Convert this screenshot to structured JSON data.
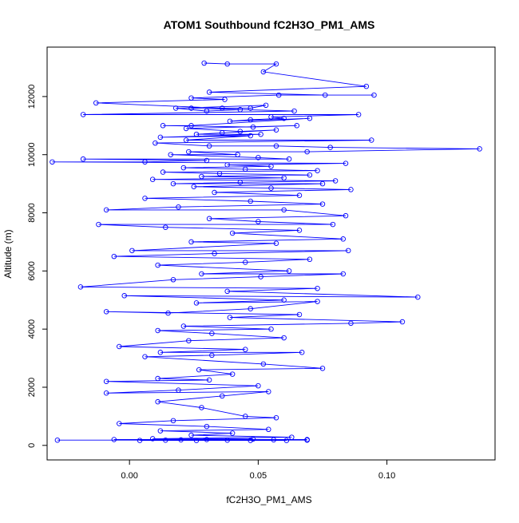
{
  "chart_data": {
    "type": "line",
    "title": "ATOM1 Southbound fC2H3O_PM1_AMS",
    "xlabel": "fC2H3O_PM1_AMS",
    "ylabel": "Altitude (m)",
    "xlim": [
      -0.032,
      0.142
    ],
    "ylim": [
      -500,
      13700
    ],
    "xticks": [
      0.0,
      0.05,
      0.1
    ],
    "xtick_labels": [
      "0.00",
      "0.05",
      "0.10"
    ],
    "yticks": [
      0,
      2000,
      4000,
      6000,
      8000,
      10000,
      12000
    ],
    "ytick_labels": [
      "0",
      "2000",
      "4000",
      "6000",
      "8000",
      "10000",
      "12000"
    ],
    "grid": false,
    "series": [
      {
        "color": "#0000ff",
        "marker": "open-circle",
        "points": [
          {
            "x": 0.029,
            "y": 13150
          },
          {
            "x": 0.038,
            "y": 13120
          },
          {
            "x": 0.057,
            "y": 13120
          },
          {
            "x": 0.052,
            "y": 12850
          },
          {
            "x": 0.092,
            "y": 12350
          },
          {
            "x": 0.031,
            "y": 12150
          },
          {
            "x": 0.076,
            "y": 12050
          },
          {
            "x": 0.095,
            "y": 12050
          },
          {
            "x": 0.058,
            "y": 12050
          },
          {
            "x": 0.024,
            "y": 11950
          },
          {
            "x": 0.037,
            "y": 11900
          },
          {
            "x": -0.013,
            "y": 11780
          },
          {
            "x": 0.036,
            "y": 11600
          },
          {
            "x": 0.047,
            "y": 11600
          },
          {
            "x": 0.053,
            "y": 11700
          },
          {
            "x": 0.018,
            "y": 11600
          },
          {
            "x": 0.03,
            "y": 11500
          },
          {
            "x": 0.043,
            "y": 11550
          },
          {
            "x": 0.024,
            "y": 11600
          },
          {
            "x": 0.064,
            "y": 11500
          },
          {
            "x": -0.018,
            "y": 11380
          },
          {
            "x": 0.089,
            "y": 11380
          },
          {
            "x": 0.055,
            "y": 11300
          },
          {
            "x": 0.06,
            "y": 11250
          },
          {
            "x": 0.047,
            "y": 11200
          },
          {
            "x": 0.039,
            "y": 11150
          },
          {
            "x": 0.07,
            "y": 11250
          },
          {
            "x": 0.024,
            "y": 11000
          },
          {
            "x": 0.013,
            "y": 11000
          },
          {
            "x": 0.048,
            "y": 10950
          },
          {
            "x": 0.065,
            "y": 11000
          },
          {
            "x": 0.022,
            "y": 10900
          },
          {
            "x": 0.043,
            "y": 10800
          },
          {
            "x": 0.057,
            "y": 10850
          },
          {
            "x": 0.036,
            "y": 10750
          },
          {
            "x": 0.026,
            "y": 10700
          },
          {
            "x": 0.051,
            "y": 10700
          },
          {
            "x": 0.012,
            "y": 10600
          },
          {
            "x": 0.047,
            "y": 10650
          },
          {
            "x": 0.022,
            "y": 10500
          },
          {
            "x": 0.094,
            "y": 10500
          },
          {
            "x": 0.01,
            "y": 10400
          },
          {
            "x": 0.031,
            "y": 10300
          },
          {
            "x": 0.057,
            "y": 10300
          },
          {
            "x": 0.078,
            "y": 10250
          },
          {
            "x": 0.136,
            "y": 10200
          },
          {
            "x": 0.069,
            "y": 10100
          },
          {
            "x": 0.023,
            "y": 10100
          },
          {
            "x": 0.042,
            "y": 10000
          },
          {
            "x": 0.016,
            "y": 10000
          },
          {
            "x": 0.05,
            "y": 9900
          },
          {
            "x": 0.062,
            "y": 9850
          },
          {
            "x": -0.018,
            "y": 9850
          },
          {
            "x": 0.03,
            "y": 9800
          },
          {
            "x": 0.006,
            "y": 9750
          },
          {
            "x": -0.03,
            "y": 9750
          },
          {
            "x": 0.084,
            "y": 9700
          },
          {
            "x": 0.038,
            "y": 9650
          },
          {
            "x": 0.055,
            "y": 9600
          },
          {
            "x": 0.021,
            "y": 9550
          },
          {
            "x": 0.045,
            "y": 9500
          },
          {
            "x": 0.073,
            "y": 9450
          },
          {
            "x": 0.013,
            "y": 9400
          },
          {
            "x": 0.035,
            "y": 9350
          },
          {
            "x": 0.07,
            "y": 9300
          },
          {
            "x": 0.028,
            "y": 9250
          },
          {
            "x": 0.06,
            "y": 9200
          },
          {
            "x": 0.009,
            "y": 9150
          },
          {
            "x": 0.08,
            "y": 9100
          },
          {
            "x": 0.043,
            "y": 9050
          },
          {
            "x": 0.017,
            "y": 9000
          },
          {
            "x": 0.075,
            "y": 9000
          },
          {
            "x": 0.025,
            "y": 8900
          },
          {
            "x": 0.055,
            "y": 8850
          },
          {
            "x": 0.086,
            "y": 8800
          },
          {
            "x": 0.033,
            "y": 8700
          },
          {
            "x": 0.066,
            "y": 8600
          },
          {
            "x": 0.006,
            "y": 8500
          },
          {
            "x": 0.047,
            "y": 8400
          },
          {
            "x": 0.075,
            "y": 8300
          },
          {
            "x": 0.019,
            "y": 8200
          },
          {
            "x": -0.009,
            "y": 8100
          },
          {
            "x": 0.06,
            "y": 8100
          },
          {
            "x": 0.084,
            "y": 7900
          },
          {
            "x": 0.031,
            "y": 7800
          },
          {
            "x": 0.05,
            "y": 7700
          },
          {
            "x": 0.079,
            "y": 7600
          },
          {
            "x": -0.012,
            "y": 7600
          },
          {
            "x": 0.014,
            "y": 7500
          },
          {
            "x": 0.066,
            "y": 7400
          },
          {
            "x": 0.04,
            "y": 7300
          },
          {
            "x": 0.083,
            "y": 7100
          },
          {
            "x": 0.024,
            "y": 7000
          },
          {
            "x": 0.057,
            "y": 6950
          },
          {
            "x": 0.001,
            "y": 6700
          },
          {
            "x": 0.085,
            "y": 6700
          },
          {
            "x": 0.033,
            "y": 6600
          },
          {
            "x": -0.006,
            "y": 6500
          },
          {
            "x": 0.07,
            "y": 6400
          },
          {
            "x": 0.045,
            "y": 6300
          },
          {
            "x": 0.011,
            "y": 6200
          },
          {
            "x": 0.062,
            "y": 6000
          },
          {
            "x": 0.028,
            "y": 5900
          },
          {
            "x": 0.083,
            "y": 5900
          },
          {
            "x": 0.051,
            "y": 5800
          },
          {
            "x": 0.017,
            "y": 5700
          },
          {
            "x": -0.019,
            "y": 5450
          },
          {
            "x": 0.073,
            "y": 5400
          },
          {
            "x": 0.038,
            "y": 5300
          },
          {
            "x": 0.112,
            "y": 5100
          },
          {
            "x": -0.002,
            "y": 5150
          },
          {
            "x": 0.06,
            "y": 5000
          },
          {
            "x": 0.026,
            "y": 4900
          },
          {
            "x": 0.073,
            "y": 4950
          },
          {
            "x": 0.047,
            "y": 4700
          },
          {
            "x": 0.015,
            "y": 4550
          },
          {
            "x": -0.009,
            "y": 4600
          },
          {
            "x": 0.066,
            "y": 4500
          },
          {
            "x": 0.039,
            "y": 4400
          },
          {
            "x": 0.106,
            "y": 4250
          },
          {
            "x": 0.086,
            "y": 4200
          },
          {
            "x": 0.021,
            "y": 4100
          },
          {
            "x": 0.055,
            "y": 4000
          },
          {
            "x": 0.011,
            "y": 3950
          },
          {
            "x": 0.032,
            "y": 3850
          },
          {
            "x": 0.06,
            "y": 3700
          },
          {
            "x": 0.023,
            "y": 3600
          },
          {
            "x": -0.004,
            "y": 3400
          },
          {
            "x": 0.045,
            "y": 3300
          },
          {
            "x": 0.012,
            "y": 3200
          },
          {
            "x": 0.067,
            "y": 3200
          },
          {
            "x": 0.032,
            "y": 3100
          },
          {
            "x": 0.006,
            "y": 3050
          },
          {
            "x": 0.052,
            "y": 2800
          },
          {
            "x": 0.075,
            "y": 2650
          },
          {
            "x": 0.027,
            "y": 2600
          },
          {
            "x": 0.04,
            "y": 2450
          },
          {
            "x": 0.011,
            "y": 2300
          },
          {
            "x": 0.031,
            "y": 2250
          },
          {
            "x": -0.009,
            "y": 2200
          },
          {
            "x": 0.05,
            "y": 2050
          },
          {
            "x": 0.019,
            "y": 1900
          },
          {
            "x": -0.009,
            "y": 1800
          },
          {
            "x": 0.054,
            "y": 1850
          },
          {
            "x": 0.036,
            "y": 1700
          },
          {
            "x": 0.011,
            "y": 1500
          },
          {
            "x": 0.028,
            "y": 1300
          },
          {
            "x": 0.045,
            "y": 1000
          },
          {
            "x": 0.057,
            "y": 950
          },
          {
            "x": 0.017,
            "y": 850
          },
          {
            "x": -0.004,
            "y": 750
          },
          {
            "x": 0.03,
            "y": 650
          },
          {
            "x": 0.054,
            "y": 550
          },
          {
            "x": 0.012,
            "y": 500
          },
          {
            "x": 0.04,
            "y": 420
          },
          {
            "x": 0.024,
            "y": 350
          },
          {
            "x": 0.063,
            "y": 280
          },
          {
            "x": 0.009,
            "y": 230
          },
          {
            "x": 0.048,
            "y": 220
          },
          {
            "x": 0.03,
            "y": 200
          },
          {
            "x": 0.069,
            "y": 200
          },
          {
            "x": -0.006,
            "y": 200
          },
          {
            "x": 0.02,
            "y": 190
          },
          {
            "x": 0.056,
            "y": 190
          },
          {
            "x": -0.028,
            "y": 180
          },
          {
            "x": 0.038,
            "y": 180
          },
          {
            "x": 0.069,
            "y": 180
          },
          {
            "x": 0.014,
            "y": 180
          },
          {
            "x": 0.047,
            "y": 170
          },
          {
            "x": 0.026,
            "y": 170
          },
          {
            "x": 0.061,
            "y": 170
          },
          {
            "x": 0.004,
            "y": 170
          }
        ]
      }
    ]
  }
}
